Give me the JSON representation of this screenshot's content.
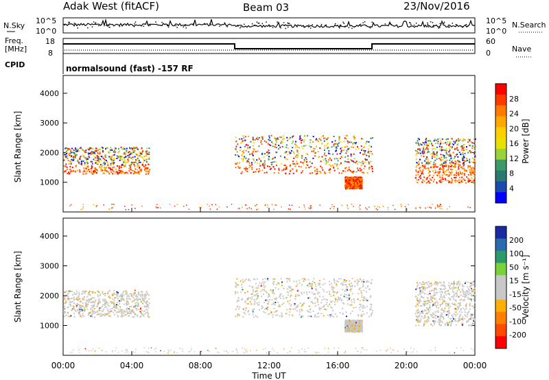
{
  "header": {
    "station": "Adak West (fitACF)",
    "beam": "Beam 03",
    "date": "23/Nov/2016"
  },
  "chart_data": [
    {
      "type": "line",
      "panel": "noise",
      "left_label": "N.Sky",
      "right_label": "N.Search",
      "left_ticks": [
        "10^5",
        "10^0"
      ],
      "right_ticks": [
        "10^5",
        "10^0"
      ]
    },
    {
      "type": "line",
      "panel": "freq-nave",
      "left_label_top": "Freq.",
      "left_label_bottom": "[MHz]",
      "right_label": "Nave",
      "left_ticks": [
        "18",
        "8"
      ],
      "right_ticks": [
        "60",
        "0"
      ],
      "freq_steps": [
        {
          "start_hour": 0,
          "end_hour": 10,
          "level": "high"
        },
        {
          "start_hour": 10,
          "end_hour": 18,
          "level": "low"
        },
        {
          "start_hour": 18,
          "end_hour": 24,
          "level": "high"
        }
      ]
    },
    {
      "type": "label",
      "panel": "cpid",
      "label": "CPID",
      "text": "normalsound (fast) -157 RF"
    },
    {
      "type": "heatmap",
      "panel": "power",
      "ylabel": "Slant Range [km]",
      "yticks": [
        1000,
        2000,
        3000,
        4000
      ],
      "colorbar_label": "Power [dB]",
      "colorbar_ticks": [
        "28",
        "24",
        "20",
        "16",
        "12",
        "8",
        "4"
      ],
      "colorbar_colors": [
        "#ff0000",
        "#ff3a00",
        "#ff7a00",
        "#ffa800",
        "#ffd000",
        "#e8e000",
        "#9ad23a",
        "#3a9a6a",
        "#2a7a70",
        "#1a4ab0",
        "#0000ff"
      ],
      "regions": [
        {
          "t0": 0.0,
          "t1": 5.0,
          "r_lo": 1300,
          "r_hi": 2200
        },
        {
          "t0": 10.0,
          "t1": 18.0,
          "r_lo": 1300,
          "r_hi": 2600
        },
        {
          "t0": 16.4,
          "t1": 17.4,
          "r_lo": 800,
          "r_hi": 1200
        },
        {
          "t0": 20.5,
          "t1": 24.0,
          "r_lo": 1000,
          "r_hi": 2500
        }
      ]
    },
    {
      "type": "heatmap",
      "panel": "velocity",
      "ylabel": "Slant Range [km]",
      "yticks": [
        1000,
        2000,
        3000,
        4000
      ],
      "colorbar_label": "Velocity [m s⁻¹]",
      "colorbar_ticks": [
        "200",
        "100",
        "50",
        "15",
        "-15",
        "-50",
        "-100",
        "-200"
      ],
      "colorbar_colors": [
        "#1a2aa0",
        "#2a6ab0",
        "#2a9a6a",
        "#7ad23a",
        "#c8c8c8",
        "#c8c8c8",
        "#ffb000",
        "#ff8000",
        "#ff4a00",
        "#ff0000"
      ],
      "xlabel": "Time UT",
      "xticks": [
        "00:00",
        "04:00",
        "08:00",
        "12:00",
        "16:00",
        "20:00",
        "00:00"
      ]
    }
  ]
}
